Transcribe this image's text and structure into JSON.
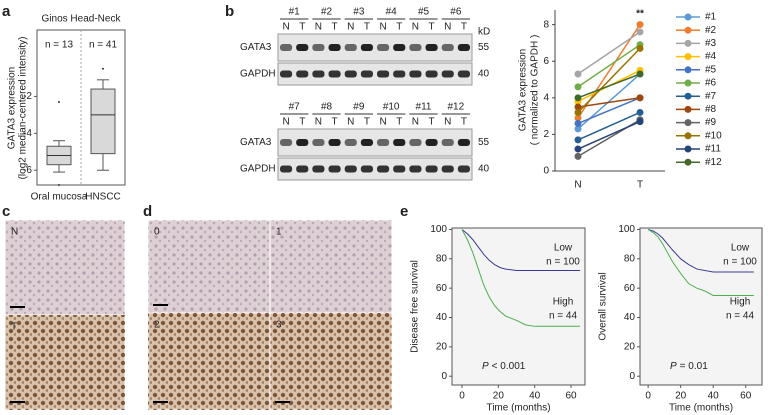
{
  "panel_labels": [
    "a",
    "b",
    "c",
    "d",
    "e"
  ],
  "chart_data": [
    {
      "type": "box",
      "title": "Ginos Head-Neck",
      "ylabel": [
        "GATA3 expression",
        "(log2 median-centered intensity)"
      ],
      "categories": [
        "Oral mucosa",
        "HNSCC"
      ],
      "annotations": [
        "n = 13",
        "n = 41"
      ],
      "boxes": [
        {
          "whisker_low": -6.1,
          "q1": -5.7,
          "median": -5.2,
          "q3": -4.7,
          "whisker_high": -4.4,
          "outliers": [
            -2.3,
            -6.8
          ]
        },
        {
          "whisker_low": -6.0,
          "q1": -5.1,
          "median": -3.0,
          "q3": -1.6,
          "whisker_high": -1.1,
          "outliers": [
            -0.5
          ]
        }
      ],
      "color": "#d9d9d9",
      "ylim": [
        -6.8,
        1.6
      ],
      "yticks": [
        -6,
        -4,
        -2
      ]
    },
    {
      "type": "line",
      "ylabel": [
        "GATA3 expression",
        "( normalized to GAPDH )"
      ],
      "annotation": "**",
      "categories": [
        "N",
        "T"
      ],
      "series": [
        {
          "name": "#1",
          "color": "#5b9bd5",
          "values": [
            2.3,
            5.3
          ]
        },
        {
          "name": "#2",
          "color": "#ed7d31",
          "values": [
            2.9,
            8.0
          ]
        },
        {
          "name": "#3",
          "color": "#a5a5a5",
          "values": [
            5.3,
            7.6
          ]
        },
        {
          "name": "#4",
          "color": "#ffc000",
          "values": [
            3.8,
            5.5
          ]
        },
        {
          "name": "#5",
          "color": "#4472c4",
          "values": [
            2.6,
            4.0
          ]
        },
        {
          "name": "#6",
          "color": "#70ad47",
          "values": [
            4.6,
            6.9
          ]
        },
        {
          "name": "#7",
          "color": "#255e91",
          "values": [
            1.7,
            3.2
          ]
        },
        {
          "name": "#8",
          "color": "#9e480e",
          "values": [
            3.5,
            4.0
          ]
        },
        {
          "name": "#9",
          "color": "#636363",
          "values": [
            0.8,
            2.8
          ]
        },
        {
          "name": "#10",
          "color": "#997300",
          "values": [
            3.2,
            6.7
          ]
        },
        {
          "name": "#11",
          "color": "#264478",
          "values": [
            1.2,
            2.7
          ]
        },
        {
          "name": "#12",
          "color": "#43682b",
          "values": [
            4.0,
            5.3
          ]
        }
      ],
      "ylim": [
        0,
        8.8
      ],
      "yticks": [
        0,
        2,
        4,
        6,
        8
      ]
    },
    {
      "type": "step",
      "ylabel": "Disease free survival",
      "xlabel": "Time (months)",
      "p_value": [
        "P",
        "< 0.001"
      ],
      "series": [
        {
          "name": "Low",
          "n_label": "n = 100",
          "color": "#3a3a96",
          "x": [
            0,
            3,
            6,
            9,
            12,
            15,
            18,
            21,
            24,
            30,
            40,
            50,
            65
          ],
          "values": [
            100,
            97,
            93,
            88,
            83,
            79,
            76,
            74,
            73,
            72,
            72,
            72,
            72
          ]
        },
        {
          "name": "High",
          "n_label": "n = 44",
          "color": "#4caf50",
          "x": [
            0,
            3,
            6,
            9,
            12,
            15,
            18,
            21,
            24,
            30,
            35,
            40,
            50,
            65
          ],
          "values": [
            100,
            93,
            84,
            73,
            62,
            54,
            48,
            44,
            41,
            38,
            35,
            34,
            34,
            34
          ]
        }
      ],
      "xlim": [
        -5.5,
        67.7
      ],
      "ylim": [
        -6,
        101
      ],
      "xticks": [
        0,
        20,
        40,
        60
      ],
      "yticks": [
        0,
        20,
        40,
        60,
        80,
        100
      ]
    },
    {
      "type": "step",
      "ylabel": "Overall survival",
      "xlabel": "Time (months)",
      "p_value": [
        "P",
        "= 0.01"
      ],
      "series": [
        {
          "name": "Low",
          "n_label": "n = 100",
          "color": "#3a3a96",
          "x": [
            0,
            3,
            6,
            9,
            12,
            15,
            20,
            25,
            30,
            40,
            50,
            65
          ],
          "values": [
            100,
            99,
            97,
            94,
            90,
            86,
            80,
            76,
            73,
            71,
            71,
            71
          ]
        },
        {
          "name": "High",
          "n_label": "n = 44",
          "color": "#4caf50",
          "x": [
            0,
            3,
            6,
            9,
            12,
            15,
            20,
            25,
            30,
            35,
            40,
            50,
            65
          ],
          "values": [
            100,
            98,
            95,
            90,
            84,
            78,
            70,
            63,
            60,
            58,
            55,
            55,
            55
          ]
        }
      ],
      "xlim": [
        -5,
        70
      ],
      "ylim": [
        -6,
        101
      ],
      "xticks": [
        0,
        20,
        40,
        60
      ],
      "yticks": [
        0,
        20,
        40,
        60,
        80,
        100
      ]
    }
  ],
  "blot": {
    "groups": [
      [
        "#1",
        "#2",
        "#3",
        "#4",
        "#5",
        "#6"
      ],
      [
        "#7",
        "#8",
        "#9",
        "#10",
        "#11",
        "#12"
      ]
    ],
    "lanes": [
      "N",
      "T"
    ],
    "proteins": [
      "GATA3",
      "GAPDH"
    ],
    "unit": "kD",
    "markers": [
      "55",
      "40"
    ]
  },
  "ihc": {
    "c": [
      "N",
      "T"
    ],
    "d": [
      "0",
      "1",
      "2",
      "3"
    ]
  }
}
